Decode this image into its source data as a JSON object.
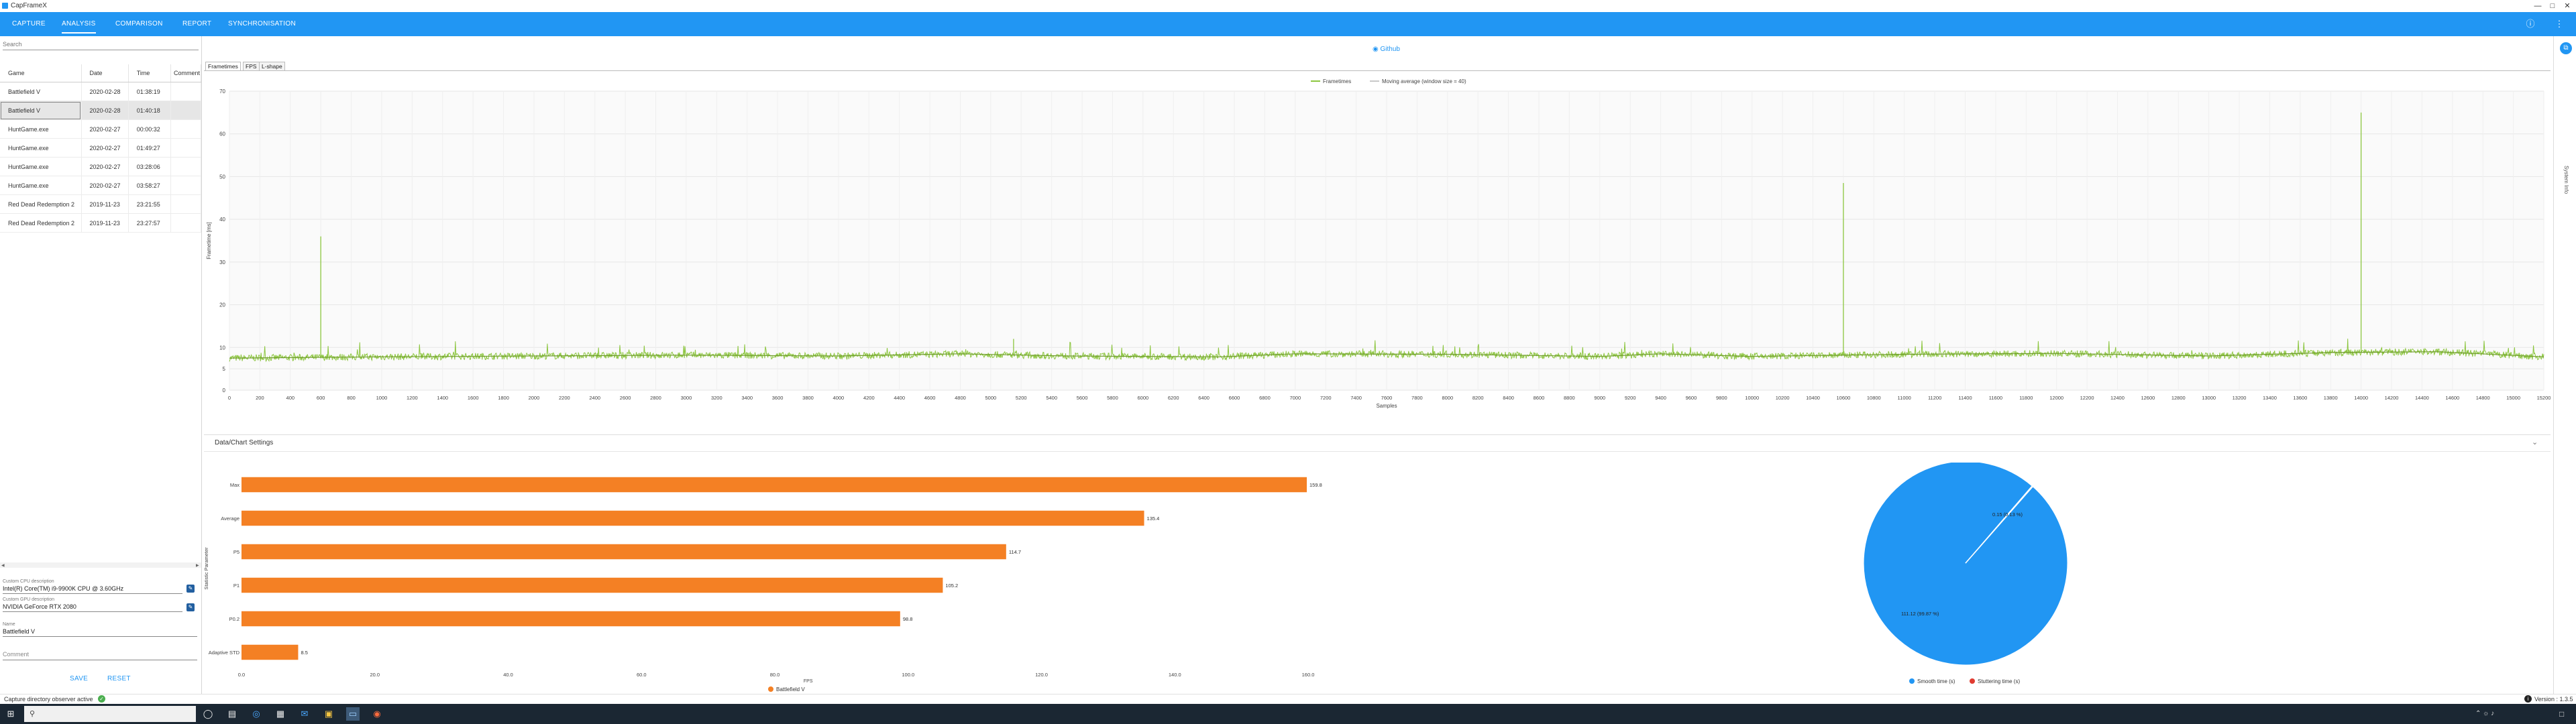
{
  "app": {
    "title": "CapFrameX"
  },
  "nav": {
    "tabs": [
      {
        "label": "CAPTURE"
      },
      {
        "label": "ANALYSIS"
      },
      {
        "label": "COMPARISON"
      },
      {
        "label": "REPORT"
      },
      {
        "label": "SYNCHRONISATION"
      }
    ],
    "active_index": 1
  },
  "left": {
    "search_placeholder": "Search",
    "columns": [
      "Game",
      "Date",
      "Time",
      "Comment"
    ],
    "rows": [
      {
        "game": "Battlefield V",
        "date": "2020-02-28",
        "time": "01:38:19"
      },
      {
        "game": "Battlefield V",
        "date": "2020-02-28",
        "time": "01:40:18"
      },
      {
        "game": "HuntGame.exe",
        "date": "2020-02-27",
        "time": "00:00:32"
      },
      {
        "game": "HuntGame.exe",
        "date": "2020-02-27",
        "time": "01:49:27"
      },
      {
        "game": "HuntGame.exe",
        "date": "2020-02-27",
        "time": "03:28:06"
      },
      {
        "game": "HuntGame.exe",
        "date": "2020-02-27",
        "time": "03:58:27"
      },
      {
        "game": "Red Dead Redemption 2",
        "date": "2019-11-23",
        "time": "23:21:55"
      },
      {
        "game": "Red Dead Redemption 2",
        "date": "2019-11-23",
        "time": "23:27:57"
      }
    ],
    "selected_row": 1,
    "cpu_label": "Custom CPU description",
    "cpu_value": "Intel(R) Core(TM) i9-9900K CPU @ 3.60GHz",
    "gpu_label": "Custom GPU description",
    "gpu_value": "NVIDIA GeForce RTX 2080",
    "name_label": "Name",
    "name_value": "Battlefield V",
    "comment_placeholder": "Comment",
    "save_label": "SAVE",
    "reset_label": "RESET"
  },
  "status": {
    "observer_text": "Capture directory observer active"
  },
  "version_text": "Version : 1.3.5",
  "main": {
    "github_label": "Github",
    "chart_tabs": [
      "Frametimes",
      "FPS",
      "L-shape"
    ],
    "active_chart_tab": 0,
    "settings_title": "Data/Chart Settings",
    "sidebar_label": "System Info"
  },
  "colors": {
    "accent": "#2196f3",
    "frametimes": "#8cc63f",
    "moving_avg": "#c8c8c8",
    "bar": "#f48024",
    "pie_smooth": "#2196f3",
    "pie_stutter": "#e03c31"
  },
  "chart_data": [
    {
      "type": "line",
      "legend": [
        "Frametimes",
        "Moving average (window size = 40)"
      ],
      "legend_position": "top-center",
      "xlabel": "Samples",
      "ylabel": "Frametime [ms]",
      "xlim": [
        0,
        15200
      ],
      "ylim": [
        0,
        70
      ],
      "x_tick_step": 200,
      "y_ticks": [
        0,
        5,
        10,
        20,
        30,
        40,
        50,
        60,
        70
      ],
      "grid": true,
      "baseline_ms": 8.2,
      "spikes": [
        {
          "x": 600,
          "y": 36
        },
        {
          "x": 5150,
          "y": 12
        },
        {
          "x": 10600,
          "y": 48.5
        },
        {
          "x": 14000,
          "y": 65
        }
      ],
      "moving_average": [
        [
          0,
          7.5
        ],
        [
          1000,
          7.8
        ],
        [
          2000,
          8.0
        ],
        [
          3000,
          8.2
        ],
        [
          4000,
          8.0
        ],
        [
          4800,
          8.5
        ],
        [
          5500,
          8.0
        ],
        [
          6500,
          7.8
        ],
        [
          7000,
          8.5
        ],
        [
          8000,
          8.4
        ],
        [
          9000,
          7.9
        ],
        [
          9400,
          8.5
        ],
        [
          10000,
          7.9
        ],
        [
          11000,
          8.4
        ],
        [
          12000,
          8.6
        ],
        [
          13000,
          8.0
        ],
        [
          13800,
          8.8
        ],
        [
          14500,
          9.0
        ],
        [
          15200,
          7.8
        ]
      ]
    },
    {
      "type": "bar",
      "orientation": "horizontal",
      "categories": [
        "Max",
        "Average",
        "P5",
        "P1",
        "P0.2",
        "Adaptive STD"
      ],
      "values": [
        159.8,
        135.4,
        114.7,
        105.2,
        98.8,
        8.5
      ],
      "value_labels": [
        "159.8",
        "135.4",
        "114.7",
        "105.2",
        "98.8",
        "8.5"
      ],
      "x_ticks": [
        "0.0",
        "20.0",
        "40.0",
        "60.0",
        "80.0",
        "100.0",
        "120.0",
        "140.0",
        "160.0"
      ],
      "xlim": [
        0,
        160
      ],
      "xlabel": "FPS",
      "ylabel": "Statistic Parameter",
      "legend": [
        "Battlefield V"
      ]
    },
    {
      "type": "pie",
      "slices": [
        {
          "label": "Smooth time (s)",
          "value": 111.12,
          "text": "111.12 (99.87 %)"
        },
        {
          "label": "Stuttering time (s)",
          "value": 0.15,
          "text": "0.15 (0.13 %)"
        }
      ],
      "legend": [
        "Smooth time (s)",
        "Stuttering time (s)"
      ]
    }
  ]
}
